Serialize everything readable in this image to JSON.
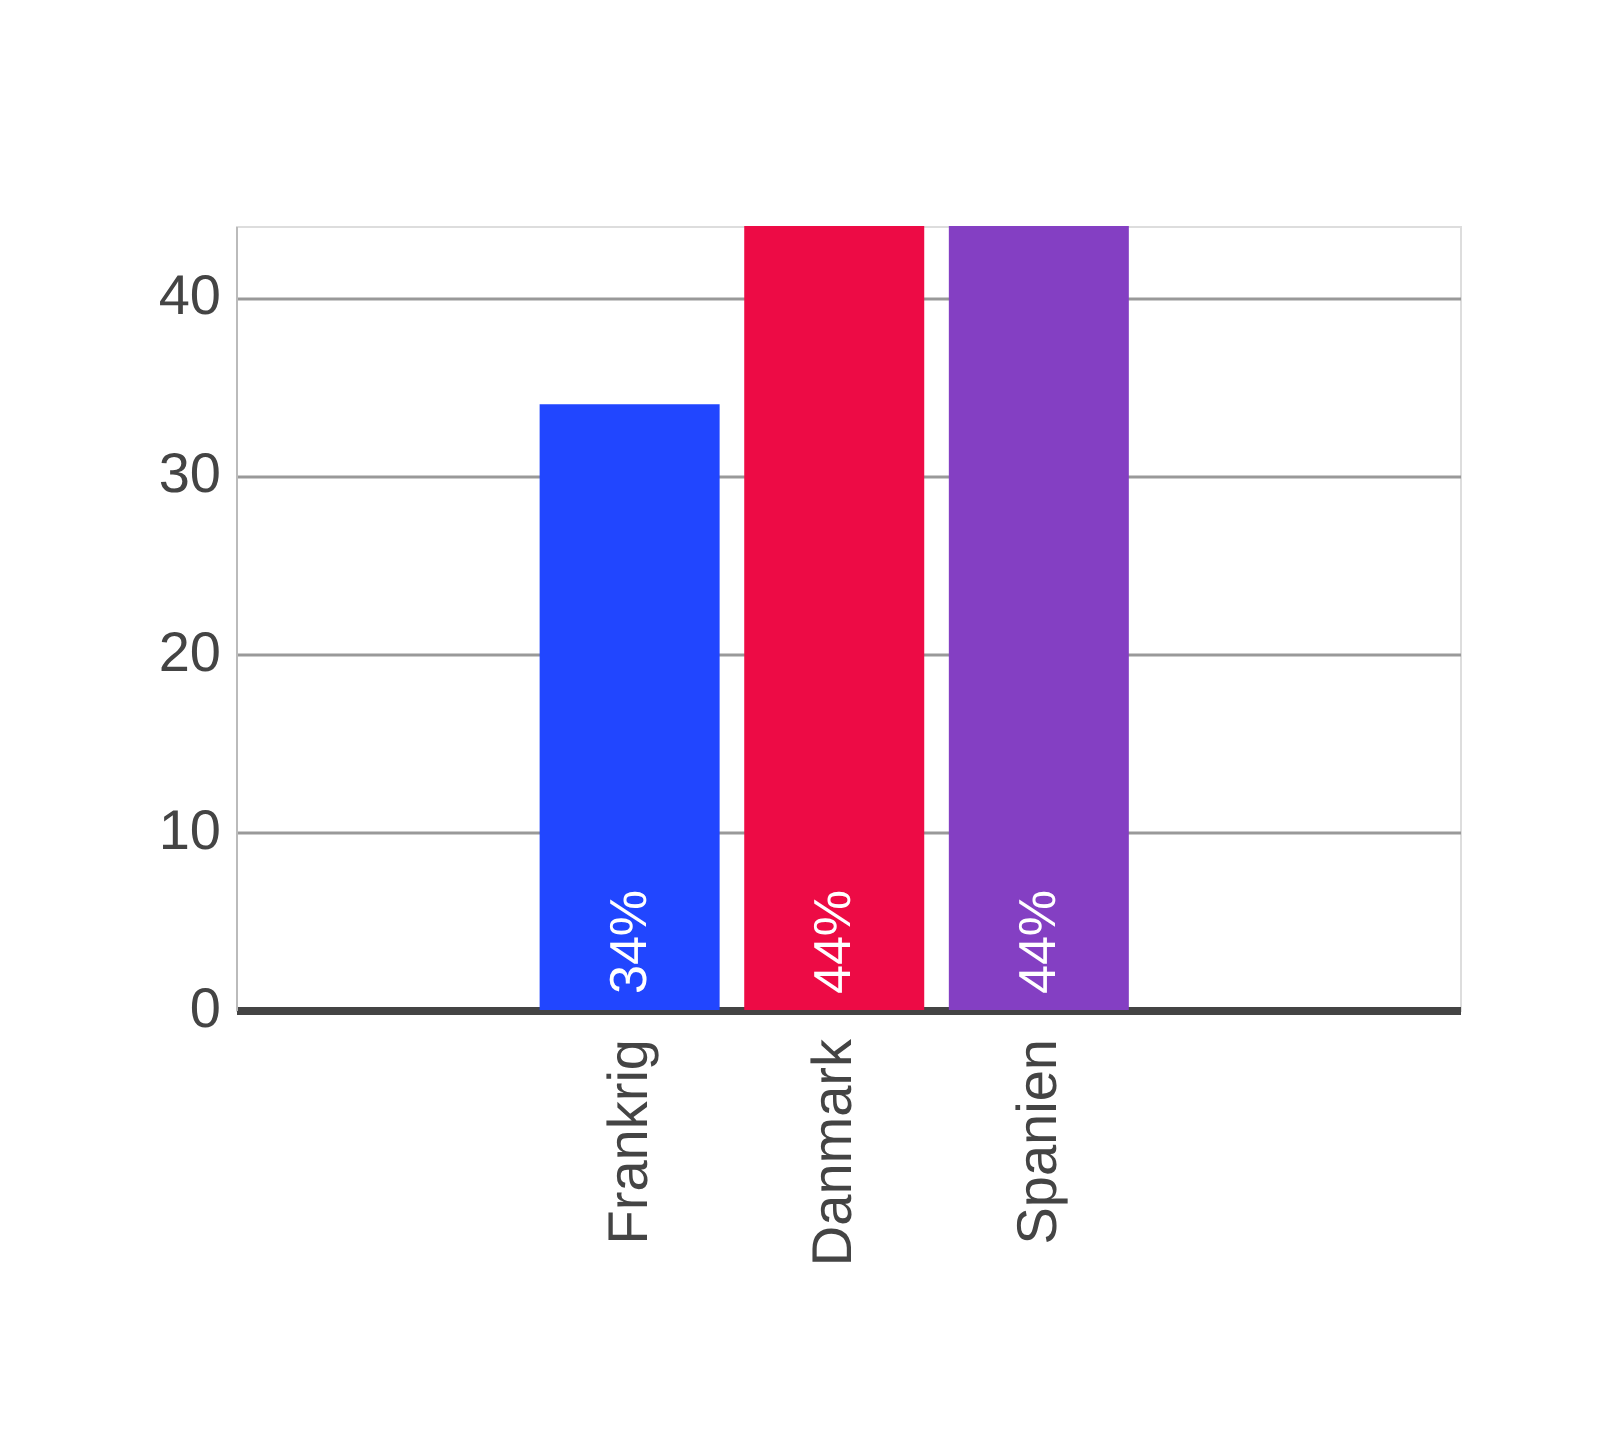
{
  "chart_data": {
    "type": "bar",
    "categories": [
      "Frankrig",
      "Danmark",
      "Spanien"
    ],
    "values": [
      34,
      44,
      44
    ],
    "colors": [
      "#2146ff",
      "#ed0b45",
      "#843fc3"
    ],
    "value_labels": [
      "34%",
      "44%",
      "44%"
    ],
    "ylim": [
      0,
      44
    ],
    "yticks": [
      0,
      10,
      20,
      30,
      40
    ],
    "grid": "y"
  }
}
